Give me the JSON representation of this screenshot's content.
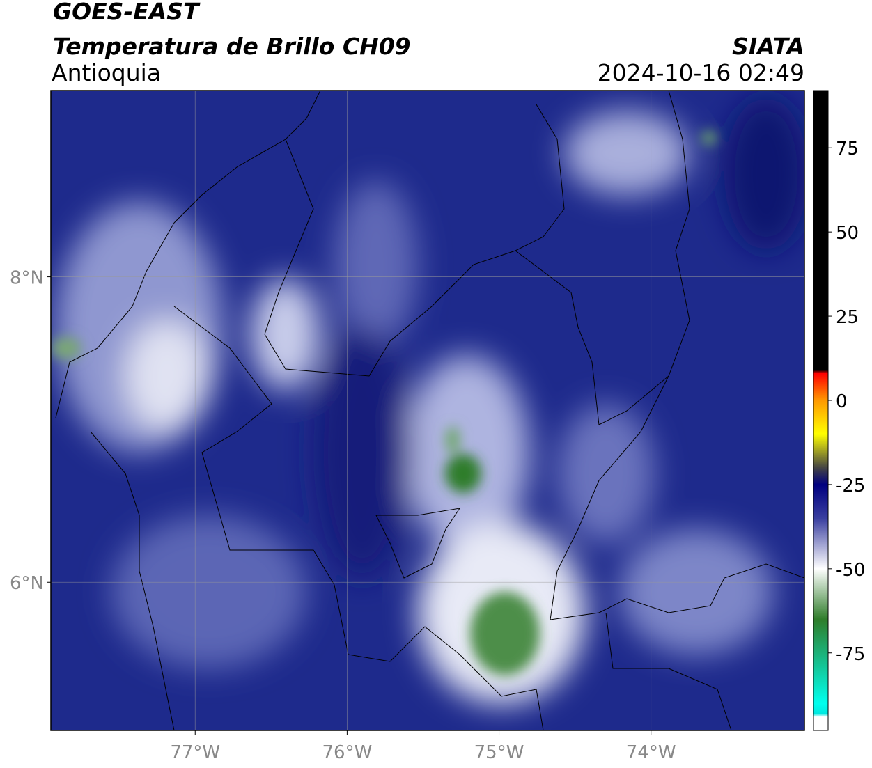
{
  "header": {
    "title": "GOES-EAST",
    "subtitle": "Temperatura de Brillo CH09",
    "region": "Antioquia",
    "source": "SIATA",
    "datetime": "2024-10-16 02:49"
  },
  "map": {
    "lon_range": [
      -77.95,
      -72.99
    ],
    "lat_range": [
      5.03,
      9.22
    ],
    "lon_ticks": [
      {
        "value": -77,
        "label": "77°W"
      },
      {
        "value": -76,
        "label": "76°W"
      },
      {
        "value": -75,
        "label": "75°W"
      },
      {
        "value": -74,
        "label": "74°W"
      }
    ],
    "lat_ticks": [
      {
        "value": 8,
        "label": "8°N"
      },
      {
        "value": 6,
        "label": "6°N"
      }
    ],
    "grid": true
  },
  "colorbar": {
    "range": [
      -98,
      92
    ],
    "ticks": [
      75,
      50,
      25,
      0,
      -25,
      -50,
      -75
    ],
    "colormap": [
      {
        "value": 92,
        "color": "#000000"
      },
      {
        "value": 9,
        "color": "#000000"
      },
      {
        "value": 8,
        "color": "#ff0000"
      },
      {
        "value": 0,
        "color": "#ff9900"
      },
      {
        "value": -10,
        "color": "#ffff00"
      },
      {
        "value": -20,
        "color": "#444444"
      },
      {
        "value": -25,
        "color": "#000080"
      },
      {
        "value": -35,
        "color": "#3a3fa0"
      },
      {
        "value": -50,
        "color": "#ffffff"
      },
      {
        "value": -65,
        "color": "#2f7d2a"
      },
      {
        "value": -90,
        "color": "#00ffee"
      },
      {
        "value": -93,
        "color": "#00e8e0"
      },
      {
        "value": -94,
        "color": "#ffffff"
      },
      {
        "value": -98,
        "color": "#ffffff"
      }
    ]
  }
}
